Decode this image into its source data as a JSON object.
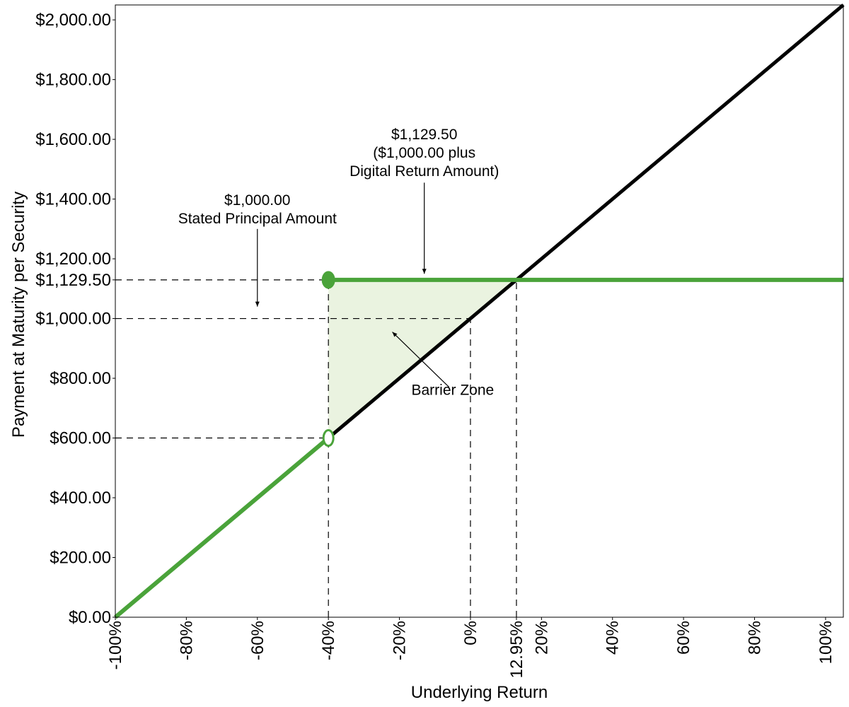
{
  "chart_data": {
    "type": "line",
    "title": "",
    "xlabel": "Underlying Return",
    "ylabel": "Payment at Maturity per Security",
    "xlim": [
      -100,
      105
    ],
    "ylim": [
      0,
      2050
    ],
    "x_ticks": [
      -100,
      -80,
      -60,
      -40,
      -20,
      0,
      12.95,
      20,
      40,
      60,
      80,
      100
    ],
    "x_tick_labels": [
      "-100%",
      "-80%",
      "-60%",
      "-40%",
      "-20%",
      "0%",
      "12.95%",
      "20%",
      "40%",
      "60%",
      "80%",
      "100%"
    ],
    "y_ticks": [
      0,
      200,
      400,
      600,
      800,
      1000,
      1129.5,
      1200,
      1400,
      1600,
      1800,
      2000
    ],
    "y_tick_labels": [
      "$0.00",
      "$200.00",
      "$400.00",
      "$600.00",
      "$800.00",
      "$1,000.00",
      "$1,129.50",
      "$1,200.00",
      "$1,400.00",
      "$1,600.00",
      "$1,800.00",
      "$2,000.00"
    ],
    "grid": false,
    "series": [
      {
        "role": "underlying",
        "color": "#000000",
        "points": [
          [
            -100,
            0
          ],
          [
            105,
            2050
          ]
        ]
      },
      {
        "role": "security-below-barrier",
        "color": "#4aa33a",
        "points": [
          [
            -100,
            0
          ],
          [
            -40,
            600
          ]
        ]
      },
      {
        "role": "security-digital",
        "color": "#4aa33a",
        "points": [
          [
            -40,
            1129.5
          ],
          [
            105,
            1129.5
          ]
        ]
      }
    ],
    "markers": [
      {
        "x": -40,
        "y": 1129.5,
        "style": "filled",
        "color": "#4aa33a"
      },
      {
        "x": -40,
        "y": 600,
        "style": "open",
        "color": "#4aa33a"
      }
    ],
    "shaded_region": {
      "color": "#eaf3e0",
      "points": [
        [
          -40,
          1129.5
        ],
        [
          12.95,
          1129.5
        ],
        [
          -40,
          600
        ]
      ]
    },
    "reference_lines": [
      {
        "type": "horizontal",
        "y": 1129.5,
        "from_x": -100,
        "to_x": -40
      },
      {
        "type": "horizontal",
        "y": 1000,
        "from_x": -100,
        "to_x": 0
      },
      {
        "type": "horizontal",
        "y": 600,
        "from_x": -100,
        "to_x": -40
      },
      {
        "type": "vertical",
        "x": -40,
        "from_y": 0,
        "to_y": 1129.5
      },
      {
        "type": "vertical",
        "x": 0,
        "from_y": 0,
        "to_y": 1000
      },
      {
        "type": "vertical",
        "x": 12.95,
        "from_y": 0,
        "to_y": 1129.5
      }
    ],
    "annotations": [
      {
        "name": "principal-annotation",
        "lines": [
          "$1,000.00",
          "Stated Principal Amount"
        ],
        "text_at": [
          -60,
          1380
        ],
        "arrow_from": [
          -60,
          1300
        ],
        "arrow_to": [
          -60,
          1040
        ]
      },
      {
        "name": "digital-annotation",
        "lines": [
          "$1,129.50",
          "($1,000.00 plus",
          "Digital Return Amount)"
        ],
        "text_at": [
          -13,
          1600
        ],
        "arrow_from": [
          -13,
          1455
        ],
        "arrow_to": [
          -13,
          1150
        ]
      },
      {
        "name": "barrier-zone-annotation",
        "lines": [
          "Barrier Zone"
        ],
        "text_at": [
          -5,
          745
        ],
        "arrow_from": [
          -6,
          770
        ],
        "arrow_to": [
          -22,
          955
        ]
      }
    ]
  }
}
